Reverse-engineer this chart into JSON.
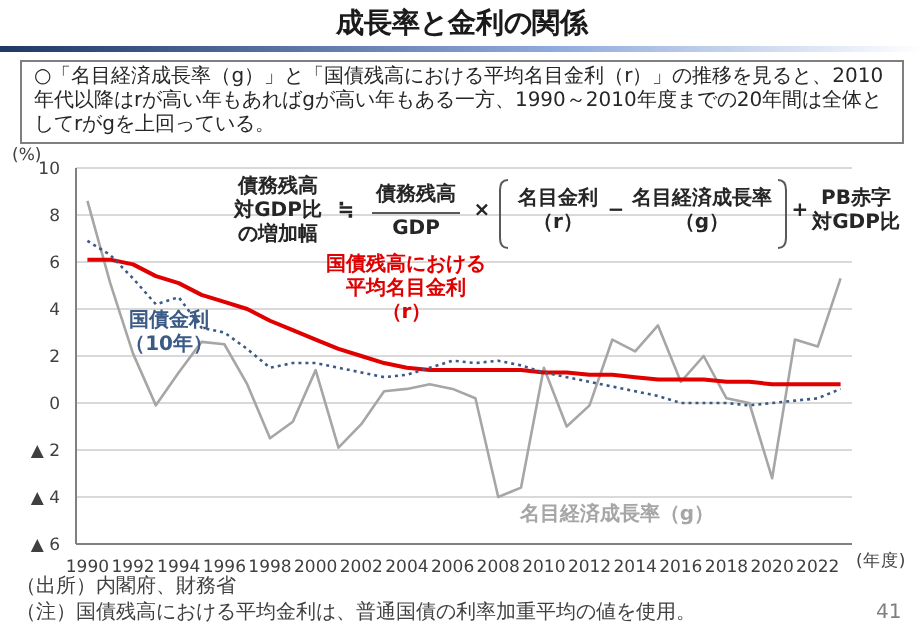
{
  "chart_data": {
    "type": "line",
    "title": "成長率と金利の関係",
    "subtitle": "○「名目経済成長率（g）」と「国債残高における平均名目金利（r）」の推移を見ると、2010年代以降はrが高い年もあればgが高い年もある一方、1990～2010年度までの20年間は全体としてrがgを上回っている。",
    "ylabel": "(%)",
    "xlabel": "(年度)",
    "x": [
      1990,
      1991,
      1992,
      1993,
      1994,
      1995,
      1996,
      1997,
      1998,
      1999,
      2000,
      2001,
      2002,
      2003,
      2004,
      2005,
      2006,
      2007,
      2008,
      2009,
      2010,
      2011,
      2012,
      2013,
      2014,
      2015,
      2016,
      2017,
      2018,
      2019,
      2020,
      2021,
      2022,
      2023
    ],
    "series": [
      {
        "name": "名目経済成長率（g）",
        "color": "#a6a6a6",
        "line_style": "solid",
        "values": [
          8.6,
          5.1,
          2.1,
          -0.1,
          1.3,
          2.6,
          2.5,
          0.8,
          -1.5,
          -0.8,
          1.4,
          -1.9,
          -0.9,
          0.5,
          0.6,
          0.8,
          0.6,
          0.2,
          -4.0,
          -3.6,
          1.5,
          -1.0,
          -0.1,
          2.7,
          2.2,
          3.3,
          0.9,
          2.0,
          0.2,
          0.0,
          -3.2,
          2.7,
          2.4,
          5.3
        ]
      },
      {
        "name": "国債残高における平均名目金利（r）",
        "color": "#e00000",
        "line_style": "solid",
        "values": [
          6.1,
          6.1,
          5.9,
          5.4,
          5.1,
          4.6,
          4.3,
          4.0,
          3.5,
          3.1,
          2.7,
          2.3,
          2.0,
          1.7,
          1.5,
          1.4,
          1.4,
          1.4,
          1.4,
          1.4,
          1.3,
          1.3,
          1.2,
          1.2,
          1.1,
          1.0,
          1.0,
          1.0,
          0.9,
          0.9,
          0.8,
          0.8,
          0.8,
          0.8
        ]
      },
      {
        "name": "国債金利（10年）",
        "color": "#3b5a86",
        "line_style": "dotted",
        "values": [
          6.9,
          6.3,
          5.3,
          4.2,
          4.5,
          3.2,
          3.0,
          2.3,
          1.5,
          1.7,
          1.7,
          1.5,
          1.3,
          1.1,
          1.2,
          1.5,
          1.8,
          1.7,
          1.8,
          1.6,
          1.3,
          1.1,
          0.9,
          0.7,
          0.5,
          0.3,
          0.0,
          0.0,
          0.0,
          -0.1,
          0.0,
          0.1,
          0.2,
          0.6
        ]
      }
    ],
    "xlim": [
      1989.5,
      2023.5
    ],
    "xticks": [
      1990,
      1992,
      1994,
      1996,
      1998,
      2000,
      2002,
      2004,
      2006,
      2008,
      2010,
      2012,
      2014,
      2016,
      2018,
      2020,
      2022
    ],
    "ylim": [
      -6,
      10
    ],
    "yticks": [
      {
        "value": -6,
        "label": "▲ 6"
      },
      {
        "value": -4,
        "label": "▲ 4"
      },
      {
        "value": -2,
        "label": "▲ 2"
      },
      0,
      2,
      4,
      6,
      8,
      10
    ],
    "grid": "y",
    "marker": "none",
    "annotations": [
      "債務残高対GDP比の増加幅",
      "≒",
      "債務残高",
      "GDP",
      "×",
      "名目金利（r）",
      "−",
      "名目経済成長率（g）",
      "+",
      "PB赤字対GDP比",
      "（出所）内閣府、財務省",
      "（注）国債残高における平均金利は、普通国債の利率加重平均の値を使用。",
      "41"
    ]
  }
}
